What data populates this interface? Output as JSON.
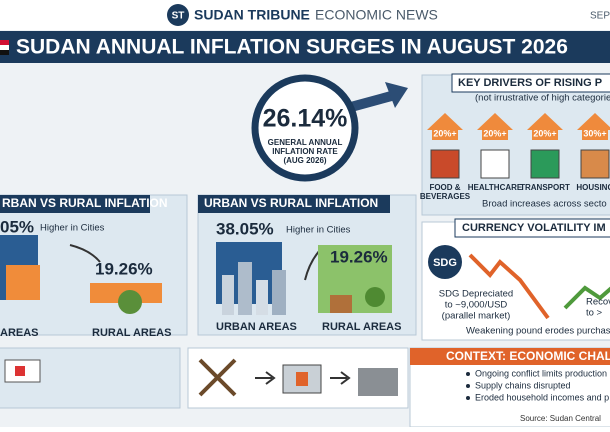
{
  "header": {
    "logo": "ST",
    "brand": "SUDAN TRIBUNE",
    "section": "ECONOMIC NEWS",
    "date": "SEP"
  },
  "title": "SUDAN ANNUAL INFLATION SURGES IN AUGUST 2026",
  "headline": {
    "value": "26.14%",
    "caption": [
      "GENERAL ANNUAL",
      "INFLATION RATE",
      "(AUG 2026)"
    ]
  },
  "left_panel": {
    "title": "RBAN VS RURAL INFLATION",
    "urban_value": "05%",
    "note": "Higher in Cities",
    "rural_value": "19.26%",
    "urban_label": "AREAS",
    "rural_label": "RURAL AREAS"
  },
  "urban_rural": {
    "title": "URBAN VS RURAL INFLATION",
    "urban_value": "38.05%",
    "note": "Higher in Cities",
    "rural_value": "19.26%",
    "urban_label": "URBAN AREAS",
    "rural_label": "RURAL AREAS"
  },
  "drivers": {
    "title": "KEY DRIVERS OF RISING P",
    "subtitle": "(not irrustrative of high categories)",
    "items": [
      {
        "pct": "20%+",
        "label": [
          "FOOD &",
          "BEVERAGES"
        ]
      },
      {
        "pct": "20%+",
        "label": [
          "HEALTHCARE"
        ]
      },
      {
        "pct": "20%+",
        "label": [
          "TRANSPORT"
        ]
      },
      {
        "pct": "30%+",
        "label": [
          "HOUSING"
        ]
      }
    ],
    "footer": "Broad increases across secto"
  },
  "currency": {
    "title": "CURRENCY VOLATILITY IM",
    "badge": "SDG",
    "note": [
      "SDG Depreciated",
      "to ~9,000/USD",
      "(parallel market)"
    ],
    "recovery": [
      "Recov",
      "to >"
    ],
    "footer": "Weakening pound erodes purchasi"
  },
  "context": {
    "title": "CONTEXT: ECONOMIC CHAL",
    "bullets": [
      "Ongoing conflict limits production",
      "Supply chains disrupted",
      "Eroded household incomes and p"
    ],
    "source": "Source: Sudan Central"
  }
}
